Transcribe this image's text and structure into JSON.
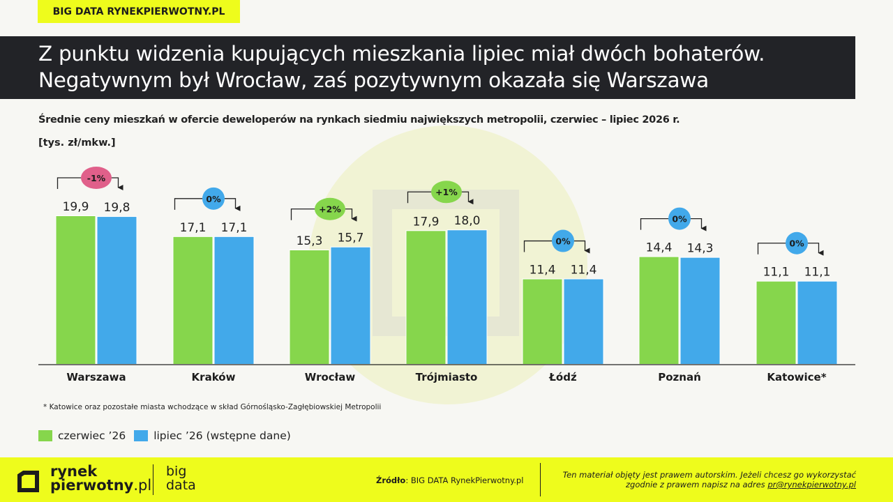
{
  "tag": "BIG DATA RYNEKPIERWOTNY.PL",
  "headline": [
    "Z punktu widzenia kupujących mieszkania lipiec miał dwóch bohaterów.",
    "Negatywnym był Wrocław, zaś pozytywnym okazała się Warszawa"
  ],
  "colors": {
    "june": "#86d64c",
    "july": "#42a9ea",
    "badge_negative": "#e0608a",
    "badge_positive": "#86d64c",
    "badge_neutral": "#42a9ea",
    "accent": "#eefc1c",
    "dark": "#222327"
  },
  "chart_data": {
    "type": "bar",
    "title": "Średnie ceny mieszkań w ofercie deweloperów na rynkach siedmiu największych metropolii, czerwiec – lipiec 2026 r.",
    "unit_label": "[tys. zł/mkw.]",
    "categories": [
      "Warszawa",
      "Kraków",
      "Wrocław",
      "Trójmiasto",
      "Łódź",
      "Poznań",
      "Katowice*"
    ],
    "series": [
      {
        "name": "czerwiec ’26",
        "values": [
          19.9,
          17.1,
          15.3,
          17.9,
          11.4,
          14.4,
          11.1
        ],
        "labels": [
          "19,9",
          "17,1",
          "15,3",
          "17,9",
          "11,4",
          "14,4",
          "11,1"
        ]
      },
      {
        "name": "lipiec ’26 (wstępne dane)",
        "values": [
          19.8,
          17.1,
          15.7,
          18.0,
          11.4,
          14.3,
          11.1
        ],
        "labels": [
          "19,8",
          "17,1",
          "15,7",
          "18,0",
          "11,4",
          "14,3",
          "11,1"
        ]
      }
    ],
    "changes": [
      {
        "label": "-1%",
        "sign": "negative"
      },
      {
        "label": "0%",
        "sign": "neutral"
      },
      {
        "label": "+2%",
        "sign": "positive"
      },
      {
        "label": "+1%",
        "sign": "positive"
      },
      {
        "label": "0%",
        "sign": "neutral"
      },
      {
        "label": "0%",
        "sign": "neutral"
      },
      {
        "label": "0%",
        "sign": "neutral"
      }
    ],
    "ylim": [
      0,
      19.9
    ],
    "legend_position": "bottom-left"
  },
  "footnote": "* Katowice oraz pozostałe miasta wchodzące w skład Górnośląsko-Zagłębiowskiej Metropolii",
  "footer": {
    "logo_line1": "rynek",
    "logo_line2": "pierwotny",
    "logo_suffix": ".pl",
    "bd_line1": "big",
    "bd_line2": "data",
    "source_label": "Źródło",
    "source_text": ": BIG DATA RynekPierwotny.pl",
    "copyright_line1": "Ten materiał objęty jest prawem autorskim. Jeżeli chcesz go wykorzystać",
    "copyright_line2a": "zgodnie z prawem napisz na adres ",
    "copyright_mail": "pr@rynekpierwotny.pl"
  }
}
